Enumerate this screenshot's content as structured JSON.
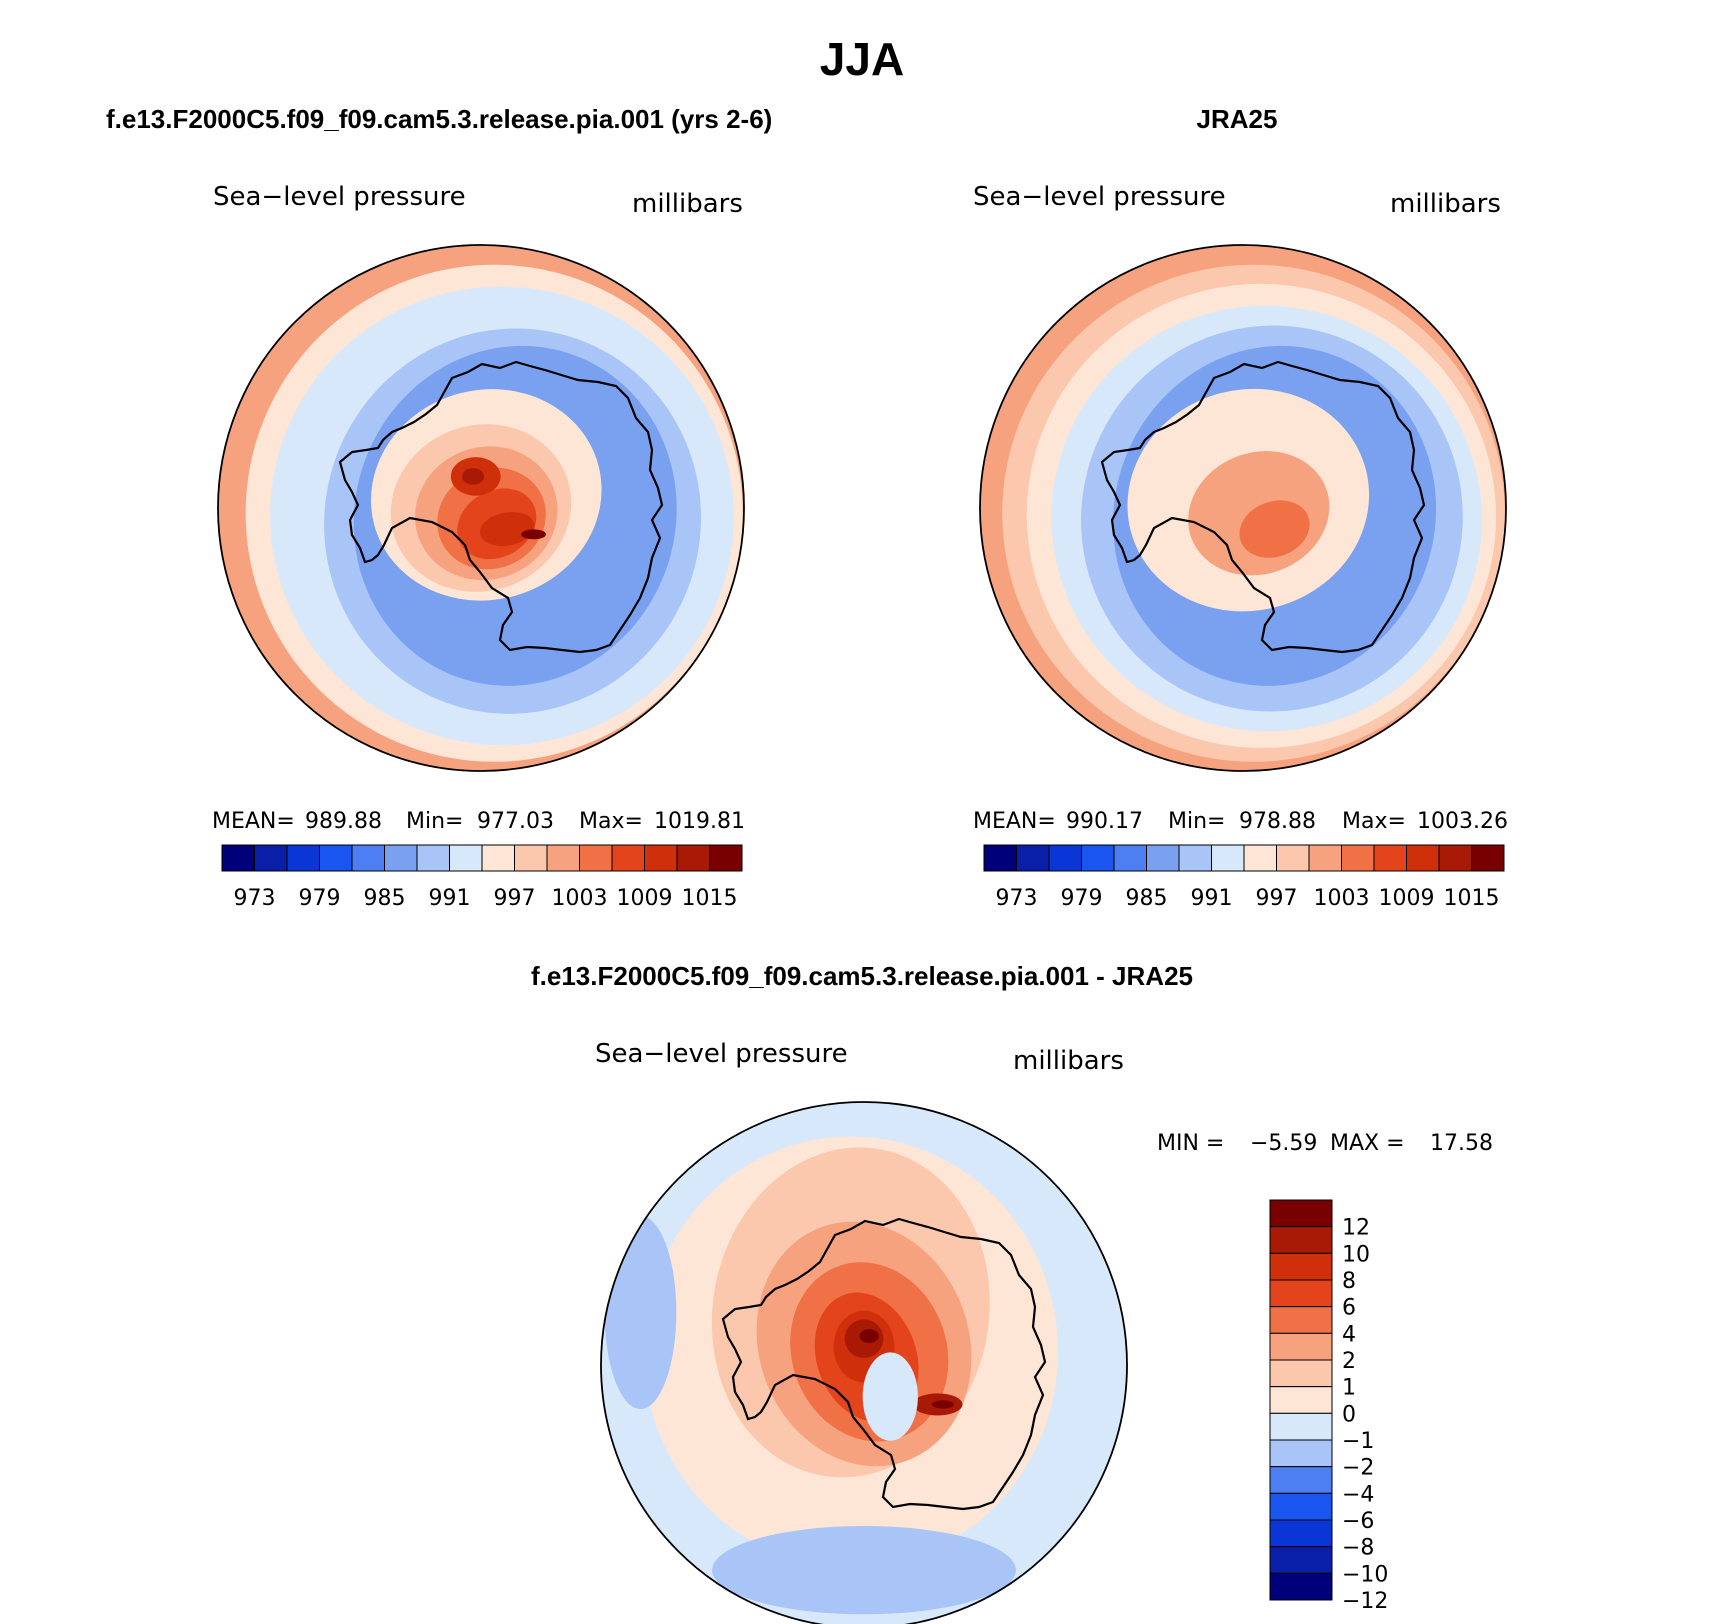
{
  "chart_data": {
    "type": "contour-map",
    "title": "JJA",
    "colors": {
      "abs_palette": [
        "#00007a",
        "#0a1fa8",
        "#0a36d6",
        "#1a55f0",
        "#4d7ff2",
        "#7aa0f0",
        "#a9c4f7",
        "#d8e8fb",
        "#fde6d6",
        "#fbc7ad",
        "#f6a27f",
        "#ef7145",
        "#e3441c",
        "#cf2f0b",
        "#a81a05",
        "#790000"
      ],
      "diff_palette": [
        "#00007a",
        "#0a1fa8",
        "#0a36d6",
        "#1a55f0",
        "#4d7ff2",
        "#a9c4f7",
        "#d8e8fb",
        "#fde6d6",
        "#fbc7ad",
        "#f6a27f",
        "#ef7145",
        "#e3441c",
        "#cf2f0b",
        "#a81a05",
        "#790000"
      ],
      "coastline": "#000000"
    },
    "panels": [
      {
        "name": "model",
        "header": "f.e13.F2000C5.f09_f09.cam5.3.release.pia.001 (yrs 2-6)",
        "variable": "Sea−level pressure",
        "units": "millibars",
        "stats": {
          "mean_label": "MEAN=",
          "mean": "989.88",
          "min_label": "Min=",
          "min": "977.03",
          "max_label": "Max=",
          "max": "1019.81"
        },
        "levels": [
          "973",
          "979",
          "985",
          "991",
          "997",
          "1003",
          "1009",
          "1015"
        ],
        "rings": [
          {
            "level": 998,
            "ox": 0,
            "oy": 0,
            "sx": 0.97,
            "sy": 0.97,
            "rot": 0
          },
          {
            "level": 993,
            "ox": 0.05,
            "oy": 0.02,
            "sx": 0.9,
            "sy": 0.9,
            "rot": 0
          },
          {
            "level": 990,
            "ox": 0.08,
            "oy": 0.03,
            "sx": 0.84,
            "sy": 0.83,
            "rot": 10
          },
          {
            "level": 988,
            "ox": 0.1,
            "oy": 0.04,
            "sx": 0.77,
            "sy": 0.76,
            "rot": 15
          },
          {
            "level": 985,
            "ox": 0.12,
            "oy": 0.05,
            "sx": 0.68,
            "sy": 0.7,
            "rot": 20
          },
          {
            "level": 982,
            "ox": 0.13,
            "oy": 0.03,
            "sx": 0.58,
            "sy": 0.62,
            "rot": 20
          },
          {
            "level": 991,
            "ox": 0.02,
            "oy": -0.05,
            "sx": 0.42,
            "sy": 0.38,
            "rot": -15
          },
          {
            "level": 994,
            "ox": 0.0,
            "oy": 0.0,
            "sx": 0.33,
            "sy": 0.3,
            "rot": -20
          },
          {
            "level": 997,
            "ox": 0.02,
            "oy": 0.02,
            "sx": 0.26,
            "sy": 0.24,
            "rot": -20
          },
          {
            "level": 1000,
            "ox": 0.04,
            "oy": 0.04,
            "sx": 0.2,
            "sy": 0.18,
            "rot": -25
          },
          {
            "level": 1003,
            "ox": 0.06,
            "oy": 0.06,
            "sx": 0.15,
            "sy": 0.12,
            "rot": -30
          },
          {
            "level": 1006,
            "ox": 0.1,
            "oy": 0.08,
            "sx": 0.1,
            "sy": 0.06,
            "rot": -10
          },
          {
            "level": 1006,
            "ox": -0.02,
            "oy": -0.12,
            "sx": 0.09,
            "sy": 0.07,
            "rot": 0
          },
          {
            "level": 1012,
            "ox": 0.2,
            "oy": 0.1,
            "sx": 0.045,
            "sy": 0.018,
            "rot": 0
          },
          {
            "level": 1009,
            "ox": -0.03,
            "oy": -0.12,
            "sx": 0.04,
            "sy": 0.03,
            "rot": 0
          }
        ]
      },
      {
        "name": "obs",
        "header": "JRA25",
        "variable": "Sea−level pressure",
        "units": "millibars",
        "stats": {
          "mean_label": "MEAN=",
          "mean": "990.17",
          "min_label": "Min=",
          "min": "978.88",
          "max_label": "Max=",
          "max": "1003.26"
        },
        "levels": [
          "973",
          "979",
          "985",
          "991",
          "997",
          "1003",
          "1009",
          "1015"
        ],
        "rings": [
          {
            "level": 998,
            "ox": 0,
            "oy": 0,
            "sx": 0.97,
            "sy": 0.97,
            "rot": 0
          },
          {
            "level": 995,
            "ox": 0.04,
            "oy": 0.02,
            "sx": 0.91,
            "sy": 0.9,
            "rot": 0
          },
          {
            "level": 991,
            "ox": 0.07,
            "oy": 0.03,
            "sx": 0.85,
            "sy": 0.84,
            "rot": 10
          },
          {
            "level": 988,
            "ox": 0.09,
            "oy": 0.04,
            "sx": 0.78,
            "sy": 0.77,
            "rot": 15
          },
          {
            "level": 985,
            "ox": 0.11,
            "oy": 0.04,
            "sx": 0.69,
            "sy": 0.7,
            "rot": 20
          },
          {
            "level": 982,
            "ox": 0.12,
            "oy": 0.03,
            "sx": 0.58,
            "sy": 0.62,
            "rot": 20
          },
          {
            "level": 991,
            "ox": 0.02,
            "oy": -0.03,
            "sx": 0.44,
            "sy": 0.4,
            "rot": -15
          },
          {
            "level": 993,
            "ox": 0.03,
            "oy": 0.0,
            "sx": 0.35,
            "sy": 0.3,
            "rot": -20
          },
          {
            "level": 997,
            "ox": 0.06,
            "oy": 0.02,
            "sx": 0.26,
            "sy": 0.22,
            "rot": -20
          },
          {
            "level": 1000,
            "ox": 0.12,
            "oy": 0.08,
            "sx": 0.13,
            "sy": 0.1,
            "rot": -20
          }
        ]
      },
      {
        "name": "diff",
        "header": "f.e13.F2000C5.f09_f09.cam5.3.release.pia.001 - JRA25",
        "variable": "Sea−level pressure",
        "units": "millibars",
        "stats": {
          "min_label": "MIN =",
          "min": "−5.59",
          "max_label": "MAX =",
          "max": "17.58"
        },
        "levels": [
          "12",
          "10",
          "8",
          "6",
          "4",
          "2",
          "1",
          "0",
          "−1",
          "−2",
          "−4",
          "−6",
          "−8",
          "−10",
          "−12"
        ],
        "rings": [
          {
            "level": -1.5,
            "ox": 0,
            "oy": 0,
            "sx": 0.97,
            "sy": 0.97,
            "rot": 0
          },
          {
            "level": -0.5,
            "ox": -0.05,
            "oy": -0.05,
            "sx": 0.75,
            "sy": 0.78,
            "rot": 0
          },
          {
            "level": 0.5,
            "ox": -0.05,
            "oy": -0.2,
            "sx": 0.5,
            "sy": 0.6,
            "rot": 10
          },
          {
            "level": 1.5,
            "ox": 0.0,
            "oy": -0.08,
            "sx": 0.38,
            "sy": 0.45,
            "rot": -20
          },
          {
            "level": 3,
            "ox": 0.02,
            "oy": -0.05,
            "sx": 0.28,
            "sy": 0.33,
            "rot": -20
          },
          {
            "level": 5,
            "ox": 0.01,
            "oy": -0.03,
            "sx": 0.18,
            "sy": 0.24,
            "rot": -20
          },
          {
            "level": 7,
            "ox": 0.0,
            "oy": -0.07,
            "sx": 0.11,
            "sy": 0.13,
            "rot": 0
          },
          {
            "level": 9,
            "ox": 0.0,
            "oy": -0.1,
            "sx": 0.07,
            "sy": 0.07,
            "rot": 0
          },
          {
            "level": 13,
            "ox": 0.02,
            "oy": -0.11,
            "sx": 0.035,
            "sy": 0.025,
            "rot": 0
          },
          {
            "level": 8,
            "ox": 0.28,
            "oy": 0.15,
            "sx": 0.09,
            "sy": 0.04,
            "rot": 0
          },
          {
            "level": 13,
            "ox": 0.3,
            "oy": 0.15,
            "sx": 0.04,
            "sy": 0.015,
            "rot": 0
          },
          {
            "level": -3,
            "ox": 0.0,
            "oy": 0.78,
            "sx": 0.55,
            "sy": 0.16,
            "rot": 0
          },
          {
            "level": -3,
            "ox": -0.85,
            "oy": -0.2,
            "sx": 0.13,
            "sy": 0.35,
            "rot": 0
          },
          {
            "level": -1.5,
            "ox": 0.1,
            "oy": 0.12,
            "sx": 0.1,
            "sy": 0.16,
            "rot": 0
          }
        ]
      }
    ]
  }
}
